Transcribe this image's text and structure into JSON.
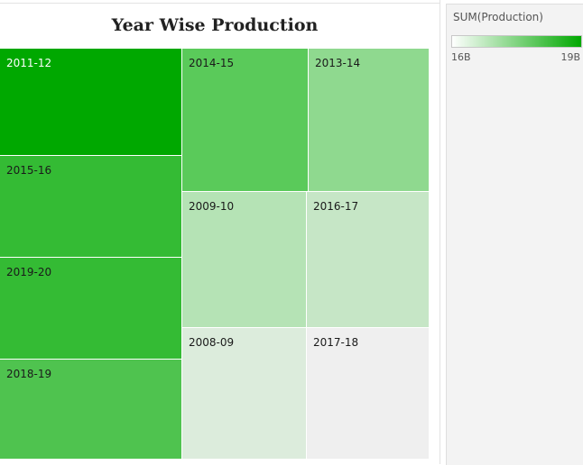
{
  "chart_data": {
    "type": "treemap",
    "title": "Year Wise Production",
    "measure": "SUM(Production)",
    "color_scale": {
      "min_label": "16B",
      "max_label": "19B",
      "min_color": "#ffffff",
      "max_color": "#00a800"
    },
    "items": [
      {
        "label": "2011-12",
        "value": 19.0,
        "color": "#00a800",
        "text_color": "#ffffff"
      },
      {
        "label": "2015-16",
        "value": 18.4,
        "color": "#34bb34",
        "text_color": "#1a1a1a"
      },
      {
        "label": "2019-20",
        "value": 18.4,
        "color": "#34bb34",
        "text_color": "#1a1a1a"
      },
      {
        "label": "2018-19",
        "value": 18.2,
        "color": "#4fc34f",
        "text_color": "#1a1a1a"
      },
      {
        "label": "2014-15",
        "value": 17.8,
        "color": "#5aca5a",
        "text_color": "#1a1a1a"
      },
      {
        "label": "2013-14",
        "value": 17.3,
        "color": "#8fd98f",
        "text_color": "#1a1a1a"
      },
      {
        "label": "2009-10",
        "value": 16.8,
        "color": "#b5e3b5",
        "text_color": "#1a1a1a"
      },
      {
        "label": "2016-17",
        "value": 16.6,
        "color": "#c6e6c6",
        "text_color": "#1a1a1a"
      },
      {
        "label": "2008-09",
        "value": 16.3,
        "color": "#dcecdc",
        "text_color": "#1a1a1a"
      },
      {
        "label": "2017-18",
        "value": 16.0,
        "color": "#efefef",
        "text_color": "#1a1a1a"
      }
    ]
  }
}
